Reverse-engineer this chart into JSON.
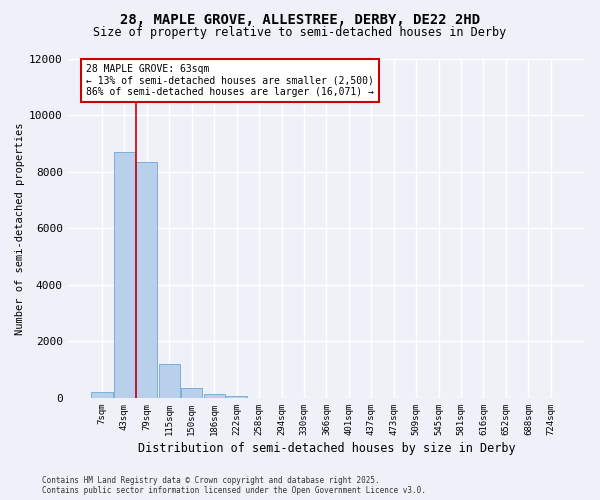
{
  "title_line1": "28, MAPLE GROVE, ALLESTREE, DERBY, DE22 2HD",
  "title_line2": "Size of property relative to semi-detached houses in Derby",
  "xlabel": "Distribution of semi-detached houses by size in Derby",
  "ylabel": "Number of semi-detached properties",
  "categories": [
    "7sqm",
    "43sqm",
    "79sqm",
    "115sqm",
    "150sqm",
    "186sqm",
    "222sqm",
    "258sqm",
    "294sqm",
    "330sqm",
    "366sqm",
    "401sqm",
    "437sqm",
    "473sqm",
    "509sqm",
    "545sqm",
    "581sqm",
    "616sqm",
    "652sqm",
    "688sqm",
    "724sqm"
  ],
  "values": [
    200,
    8700,
    8350,
    1200,
    350,
    130,
    60,
    0,
    0,
    0,
    0,
    0,
    0,
    0,
    0,
    0,
    0,
    0,
    0,
    0,
    0
  ],
  "bar_color": "#b8d0ec",
  "bar_edge_color": "#6fa8d4",
  "property_line_x": 1.5,
  "property_line_color": "#cc0000",
  "annotation_title": "28 MAPLE GROVE: 63sqm",
  "annotation_line1": "← 13% of semi-detached houses are smaller (2,500)",
  "annotation_line2": "86% of semi-detached houses are larger (16,071) →",
  "ylim": [
    0,
    12000
  ],
  "yticks": [
    0,
    2000,
    4000,
    6000,
    8000,
    10000,
    12000
  ],
  "footer_line1": "Contains HM Land Registry data © Crown copyright and database right 2025.",
  "footer_line2": "Contains public sector information licensed under the Open Government Licence v3.0.",
  "bg_color": "#eef2f8",
  "grid_color": "#ffffff",
  "title_fontsize": 10,
  "subtitle_fontsize": 8.5
}
